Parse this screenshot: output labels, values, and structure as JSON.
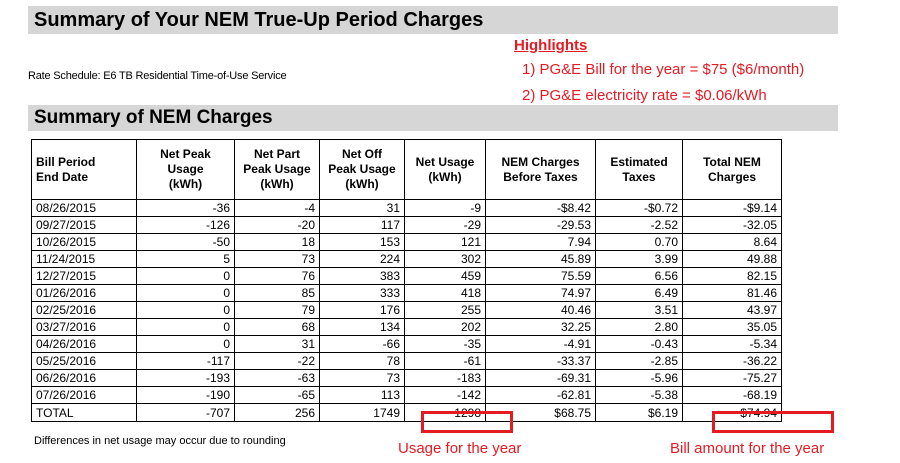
{
  "title": "Summary of Your NEM True-Up Period Charges",
  "rate_schedule": "Rate Schedule:  E6 TB Residential Time-of-Use Service",
  "highlights": {
    "title": "Highlights",
    "line1": "1) PG&E Bill for the year = $75 ($6/month)",
    "line2": "2) PG&E electricity rate = $0.06/kWh"
  },
  "subtitle": "Summary of NEM Charges",
  "table": {
    "headers": [
      [
        "Bill Period",
        "End Date"
      ],
      [
        "Net Peak",
        "Usage",
        "(kWh)"
      ],
      [
        "Net Part",
        "Peak Usage",
        "(kWh)"
      ],
      [
        "Net Off",
        "Peak Usage",
        "(kWh)"
      ],
      [
        "Net Usage",
        "(kWh)"
      ],
      [
        "NEM Charges",
        "Before Taxes"
      ],
      [
        "Estimated",
        "Taxes"
      ],
      [
        "Total NEM",
        "Charges"
      ]
    ],
    "rows": [
      [
        "08/26/2015",
        "-36",
        "-4",
        "31",
        "-9",
        "-$8.42",
        "-$0.72",
        "-$9.14"
      ],
      [
        "09/27/2015",
        "-126",
        "-20",
        "117",
        "-29",
        "-29.53",
        "-2.52",
        "-32.05"
      ],
      [
        "10/26/2015",
        "-50",
        "18",
        "153",
        "121",
        "7.94",
        "0.70",
        "8.64"
      ],
      [
        "11/24/2015",
        "5",
        "73",
        "224",
        "302",
        "45.89",
        "3.99",
        "49.88"
      ],
      [
        "12/27/2015",
        "0",
        "76",
        "383",
        "459",
        "75.59",
        "6.56",
        "82.15"
      ],
      [
        "01/26/2016",
        "0",
        "85",
        "333",
        "418",
        "74.97",
        "6.49",
        "81.46"
      ],
      [
        "02/25/2016",
        "0",
        "79",
        "176",
        "255",
        "40.46",
        "3.51",
        "43.97"
      ],
      [
        "03/27/2016",
        "0",
        "68",
        "134",
        "202",
        "32.25",
        "2.80",
        "35.05"
      ],
      [
        "04/26/2016",
        "0",
        "31",
        "-66",
        "-35",
        "-4.91",
        "-0.43",
        "-5.34"
      ],
      [
        "05/25/2016",
        "-117",
        "-22",
        "78",
        "-61",
        "-33.37",
        "-2.85",
        "-36.22"
      ],
      [
        "06/26/2016",
        "-193",
        "-63",
        "73",
        "-183",
        "-69.31",
        "-5.96",
        "-75.27"
      ],
      [
        "07/26/2016",
        "-190",
        "-65",
        "113",
        "-142",
        "-62.81",
        "-5.38",
        "-68.19"
      ]
    ],
    "total": [
      "TOTAL",
      "-707",
      "256",
      "1749",
      "1298",
      "$68.75",
      "$6.19",
      "$74.94"
    ]
  },
  "note": "Differences in net usage may occur due to rounding",
  "annotations": {
    "usage": "Usage for the year",
    "bill": "Bill amount for the year"
  },
  "accent_color": "#e51b24"
}
